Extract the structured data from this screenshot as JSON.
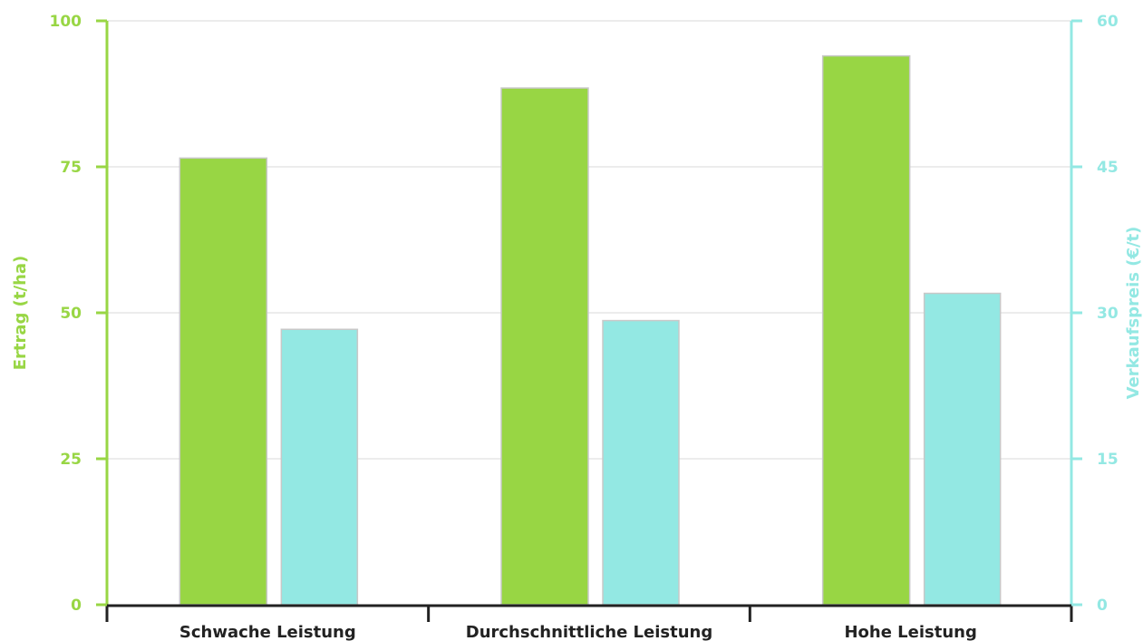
{
  "chart_data": {
    "type": "bar",
    "categories": [
      "Schwache Leistung",
      "Durchschnittliche Leistung",
      "Hohe Leistung"
    ],
    "series": [
      {
        "name": "Ertrag (t/ha)",
        "axis": "left",
        "values": [
          76.5,
          88.5,
          94
        ],
        "color": "#98d644"
      },
      {
        "name": "Verkaufspreis (€/t)",
        "axis": "right",
        "values": [
          28.3,
          29.2,
          32
        ],
        "color": "#93e8e3"
      }
    ],
    "y_left": {
      "label": "Ertrag (t/ha)",
      "range": [
        0,
        100
      ],
      "ticks": [
        "0",
        "25",
        "50",
        "75",
        "100"
      ],
      "color": "#98d644"
    },
    "y_right": {
      "label": "Verkaufspreis (€/t)",
      "range": [
        0,
        60
      ],
      "ticks": [
        "0",
        "15",
        "30",
        "45",
        "60"
      ],
      "color": "#93e8e3"
    },
    "grid": true,
    "legend": "none"
  }
}
